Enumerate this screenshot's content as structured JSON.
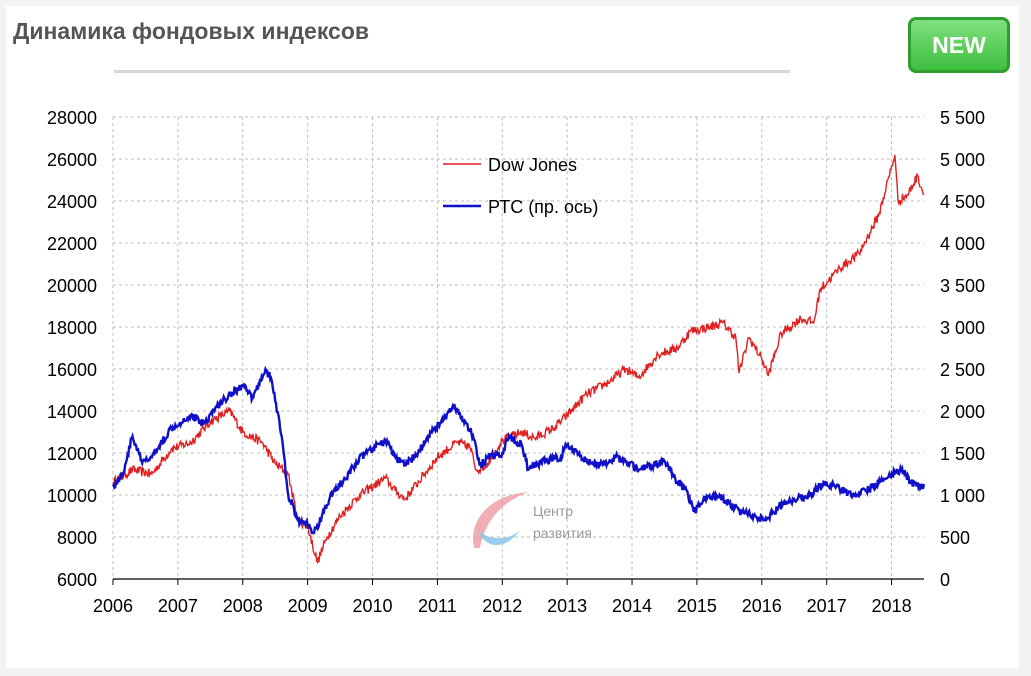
{
  "header": {
    "title": "Динамика фондовых индексов",
    "badge": "NEW"
  },
  "watermark": {
    "line1": "Центр",
    "line2": "развития"
  },
  "colors": {
    "dow": "#e02020",
    "rts": "#1010c8",
    "grid": "#bdbdbd"
  },
  "chart_data": {
    "type": "line",
    "title": "Динамика фондовых индексов",
    "grid": true,
    "legend_position": "top-center",
    "x_ticks": [
      "2006",
      "2007",
      "2008",
      "2009",
      "2010",
      "2011",
      "2012",
      "2013",
      "2014",
      "2015",
      "2016",
      "2017",
      "2018"
    ],
    "y_left": {
      "ticks": [
        "28000",
        "26000",
        "24000",
        "22000",
        "20000",
        "18000",
        "16000",
        "14000",
        "12000",
        "10000",
        "8000",
        "6000"
      ],
      "range": [
        6000,
        28000
      ]
    },
    "y_right": {
      "ticks": [
        "5 500",
        "5 000",
        "4 500",
        "4 000",
        "3 500",
        "3 000",
        "2 500",
        "2 000",
        "1 500",
        "1 000",
        "500",
        "0"
      ],
      "range": [
        0,
        5500
      ]
    },
    "x_range": [
      2006.0,
      2018.5
    ],
    "series": [
      {
        "name": "Dow Jones",
        "axis": "left",
        "points": [
          [
            2006.0,
            10600
          ],
          [
            2006.3,
            11200
          ],
          [
            2006.6,
            11000
          ],
          [
            2006.9,
            12200
          ],
          [
            2007.2,
            12500
          ],
          [
            2007.5,
            13500
          ],
          [
            2007.8,
            14000
          ],
          [
            2008.0,
            13000
          ],
          [
            2008.3,
            12500
          ],
          [
            2008.5,
            11500
          ],
          [
            2008.7,
            11000
          ],
          [
            2008.85,
            8800
          ],
          [
            2009.0,
            8500
          ],
          [
            2009.15,
            6800
          ],
          [
            2009.3,
            8000
          ],
          [
            2009.5,
            9000
          ],
          [
            2009.8,
            10000
          ],
          [
            2010.2,
            10800
          ],
          [
            2010.35,
            10200
          ],
          [
            2010.5,
            9800
          ],
          [
            2010.8,
            11000
          ],
          [
            2011.0,
            11800
          ],
          [
            2011.3,
            12500
          ],
          [
            2011.5,
            12300
          ],
          [
            2011.6,
            11200
          ],
          [
            2011.75,
            11400
          ],
          [
            2012.0,
            12600
          ],
          [
            2012.3,
            13000
          ],
          [
            2012.5,
            12700
          ],
          [
            2012.8,
            13200
          ],
          [
            2013.0,
            13800
          ],
          [
            2013.3,
            14800
          ],
          [
            2013.6,
            15300
          ],
          [
            2013.9,
            16000
          ],
          [
            2014.1,
            15600
          ],
          [
            2014.4,
            16700
          ],
          [
            2014.7,
            17000
          ],
          [
            2014.9,
            17800
          ],
          [
            2015.2,
            18000
          ],
          [
            2015.4,
            18200
          ],
          [
            2015.6,
            17500
          ],
          [
            2015.65,
            15800
          ],
          [
            2015.8,
            17500
          ],
          [
            2016.0,
            16500
          ],
          [
            2016.1,
            15700
          ],
          [
            2016.3,
            17700
          ],
          [
            2016.6,
            18400
          ],
          [
            2016.8,
            18200
          ],
          [
            2016.9,
            19800
          ],
          [
            2017.2,
            20800
          ],
          [
            2017.5,
            21500
          ],
          [
            2017.8,
            23300
          ],
          [
            2018.05,
            26200
          ],
          [
            2018.1,
            24000
          ],
          [
            2018.25,
            24300
          ],
          [
            2018.4,
            25200
          ],
          [
            2018.5,
            24300
          ]
        ]
      },
      {
        "name": "РТС (пр. ось)",
        "axis": "right",
        "points": [
          [
            2006.0,
            1100
          ],
          [
            2006.15,
            1250
          ],
          [
            2006.3,
            1700
          ],
          [
            2006.45,
            1380
          ],
          [
            2006.6,
            1450
          ],
          [
            2006.9,
            1800
          ],
          [
            2007.2,
            1950
          ],
          [
            2007.4,
            1850
          ],
          [
            2007.6,
            2050
          ],
          [
            2007.8,
            2200
          ],
          [
            2008.0,
            2300
          ],
          [
            2008.15,
            2150
          ],
          [
            2008.35,
            2500
          ],
          [
            2008.45,
            2350
          ],
          [
            2008.6,
            1700
          ],
          [
            2008.7,
            1000
          ],
          [
            2008.85,
            700
          ],
          [
            2009.0,
            650
          ],
          [
            2009.1,
            550
          ],
          [
            2009.25,
            800
          ],
          [
            2009.4,
            1050
          ],
          [
            2009.6,
            1200
          ],
          [
            2009.75,
            1400
          ],
          [
            2010.0,
            1550
          ],
          [
            2010.2,
            1650
          ],
          [
            2010.35,
            1450
          ],
          [
            2010.5,
            1350
          ],
          [
            2010.7,
            1500
          ],
          [
            2010.9,
            1750
          ],
          [
            2011.1,
            1900
          ],
          [
            2011.25,
            2050
          ],
          [
            2011.4,
            1900
          ],
          [
            2011.55,
            1700
          ],
          [
            2011.65,
            1350
          ],
          [
            2011.8,
            1450
          ],
          [
            2012.0,
            1500
          ],
          [
            2012.1,
            1700
          ],
          [
            2012.3,
            1600
          ],
          [
            2012.4,
            1300
          ],
          [
            2012.6,
            1400
          ],
          [
            2012.9,
            1450
          ],
          [
            2013.0,
            1600
          ],
          [
            2013.2,
            1450
          ],
          [
            2013.5,
            1350
          ],
          [
            2013.75,
            1450
          ],
          [
            2013.9,
            1400
          ],
          [
            2014.1,
            1300
          ],
          [
            2014.3,
            1350
          ],
          [
            2014.5,
            1400
          ],
          [
            2014.7,
            1150
          ],
          [
            2014.85,
            1050
          ],
          [
            2014.95,
            800
          ],
          [
            2015.1,
            950
          ],
          [
            2015.3,
            1000
          ],
          [
            2015.5,
            900
          ],
          [
            2015.7,
            800
          ],
          [
            2015.9,
            750
          ],
          [
            2016.05,
            700
          ],
          [
            2016.25,
            850
          ],
          [
            2016.5,
            950
          ],
          [
            2016.75,
            1000
          ],
          [
            2016.95,
            1150
          ],
          [
            2017.15,
            1100
          ],
          [
            2017.4,
            1000
          ],
          [
            2017.6,
            1050
          ],
          [
            2017.8,
            1150
          ],
          [
            2018.0,
            1250
          ],
          [
            2018.15,
            1300
          ],
          [
            2018.3,
            1150
          ],
          [
            2018.45,
            1100
          ],
          [
            2018.5,
            1130
          ]
        ]
      }
    ]
  }
}
